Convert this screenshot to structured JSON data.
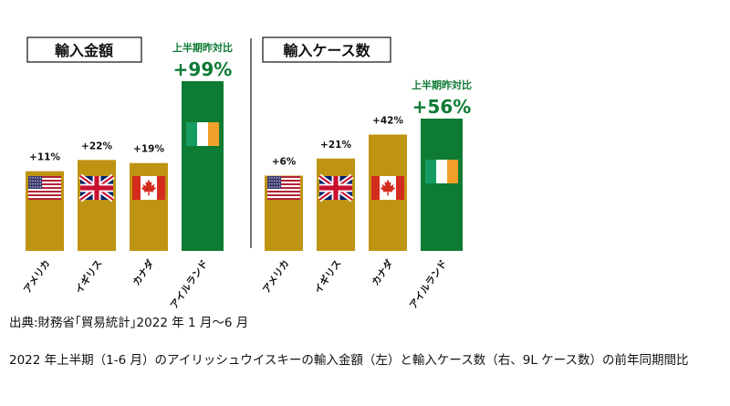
{
  "chart_data": [
    {
      "type": "bar",
      "title": "輸入金額",
      "annotation_label": "上半期昨対比",
      "categories": [
        "アメリカ",
        "イギリス",
        "カナダ",
        "アイルランド"
      ],
      "values": [
        11,
        22,
        19,
        99
      ],
      "data_labels": [
        "+11%",
        "+22%",
        "+19%",
        "+99%"
      ],
      "ylim": [
        0,
        110
      ],
      "colors": {
        "bar": "#bf9412",
        "highlight": "#0e7b34",
        "label_highlight": "#0e7b34"
      },
      "flag_icons": [
        "usa-flag-icon",
        "uk-flag-icon",
        "canada-flag-icon",
        "ireland-flag-icon"
      ]
    },
    {
      "type": "bar",
      "title": "輸入ケース数",
      "annotation_label": "上半期昨対比",
      "categories": [
        "アメリカ",
        "イギリス",
        "カナダ",
        "アイルランド"
      ],
      "values": [
        6,
        21,
        42,
        56
      ],
      "data_labels": [
        "+6%",
        "+21%",
        "+42%",
        "+56%"
      ],
      "ylim": [
        0,
        110
      ],
      "colors": {
        "bar": "#bf9412",
        "highlight": "#0e7b34",
        "label_highlight": "#0e7b34"
      },
      "flag_icons": [
        "usa-flag-icon",
        "uk-flag-icon",
        "canada-flag-icon",
        "ireland-flag-icon"
      ]
    }
  ],
  "source": "出典:財務省｢貿易統計｣2022 年 1 月～6 月",
  "description": "2022 年上半期（1-6 月）のアイリッシュウイスキーの輸入金額（左）と輸入ケース数（右、9L ケース数）の前年同期間比"
}
